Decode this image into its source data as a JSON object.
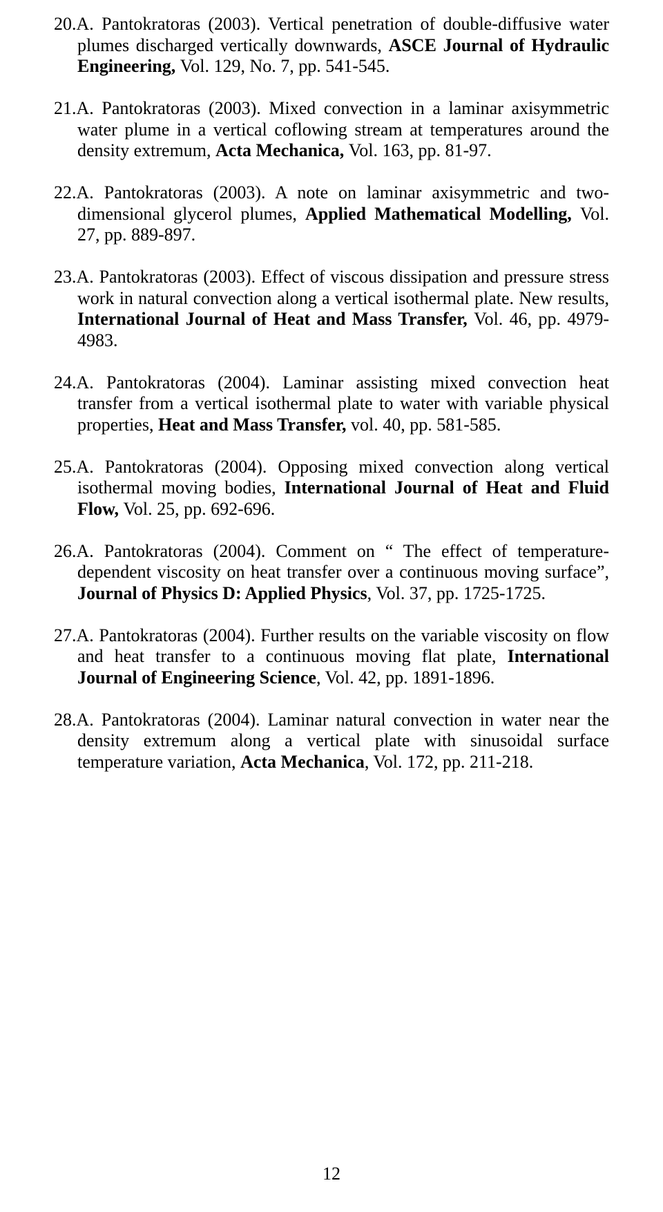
{
  "page_number": "12",
  "references": [
    {
      "num": "20.",
      "author": "A. Pantokratoras (2003). ",
      "text_before_bold": "Vertical penetration of double-diffusive water plumes discharged vertically downwards, ",
      "bold": "ASCE Journal of Hydraulic Engineering, ",
      "text_after_bold": "Vol. 129, No. 7, pp. 541-545."
    },
    {
      "num": "21.",
      "author": "A. Pantokratoras (2003). ",
      "text_before_bold": "Mixed convection in a laminar axisymmetric water plume in a vertical coflowing stream at temperatures around the density extremum, ",
      "bold": "Acta Mechanica, ",
      "text_after_bold": "Vol. 163, pp. 81-97."
    },
    {
      "num": "22.",
      "author": "A. Pantokratoras (2003). ",
      "text_before_bold": "A note on laminar axisymmetric and two-dimensional glycerol plumes, ",
      "bold": "Applied Mathematical Modelling, ",
      "text_after_bold": "Vol. 27, pp. 889-897."
    },
    {
      "num": "23.",
      "author": "A. Pantokratoras (2003). ",
      "text_before_bold": "Effect of viscous dissipation and pressure stress work in natural convection along a  vertical isothermal plate. New results, ",
      "bold": "International Journal of Heat and Mass Transfer, ",
      "text_after_bold": "Vol. 46, pp. 4979-4983."
    },
    {
      "num": "24.",
      "author": "A. Pantokratoras (2004). ",
      "text_before_bold": "Laminar assisting mixed convection heat transfer from a vertical isothermal plate to water with variable physical properties, ",
      "bold": "Heat and Mass Transfer, ",
      "text_after_bold": "vol. 40, pp. 581-585."
    },
    {
      "num": "25.",
      "author": "A. Pantokratoras (2004). ",
      "text_before_bold": "Opposing mixed convection along vertical isothermal moving bodies, ",
      "bold": "International Journal of Heat and Fluid Flow, ",
      "text_after_bold": "Vol. 25, pp. 692-696."
    },
    {
      "num": "26.",
      "author": "A. Pantokratoras (2004). ",
      "text_before_bold": "Comment on “ The effect of temperature-dependent viscosity on heat transfer over a continuous moving surface”, ",
      "bold": "Journal of Physics D: Applied Physics",
      "text_after_bold": ",  Vol. 37, pp. 1725-1725."
    },
    {
      "num": "27.",
      "author": "A. Pantokratoras (2004). ",
      "text_before_bold": "Further results on the variable viscosity on flow and heat transfer to a continuous moving flat plate, ",
      "bold": "International Journal of Engineering Science",
      "text_after_bold": ", Vol. 42, pp. 1891-1896."
    },
    {
      "num": "28.",
      "author": "A. Pantokratoras (2004). ",
      "text_before_bold": "Laminar natural convection in water near the density extremum along a vertical plate with sinusoidal surface temperature variation, ",
      "bold": "Acta Mechanica",
      "text_after_bold": ", Vol. 172, pp. 211-218."
    }
  ]
}
